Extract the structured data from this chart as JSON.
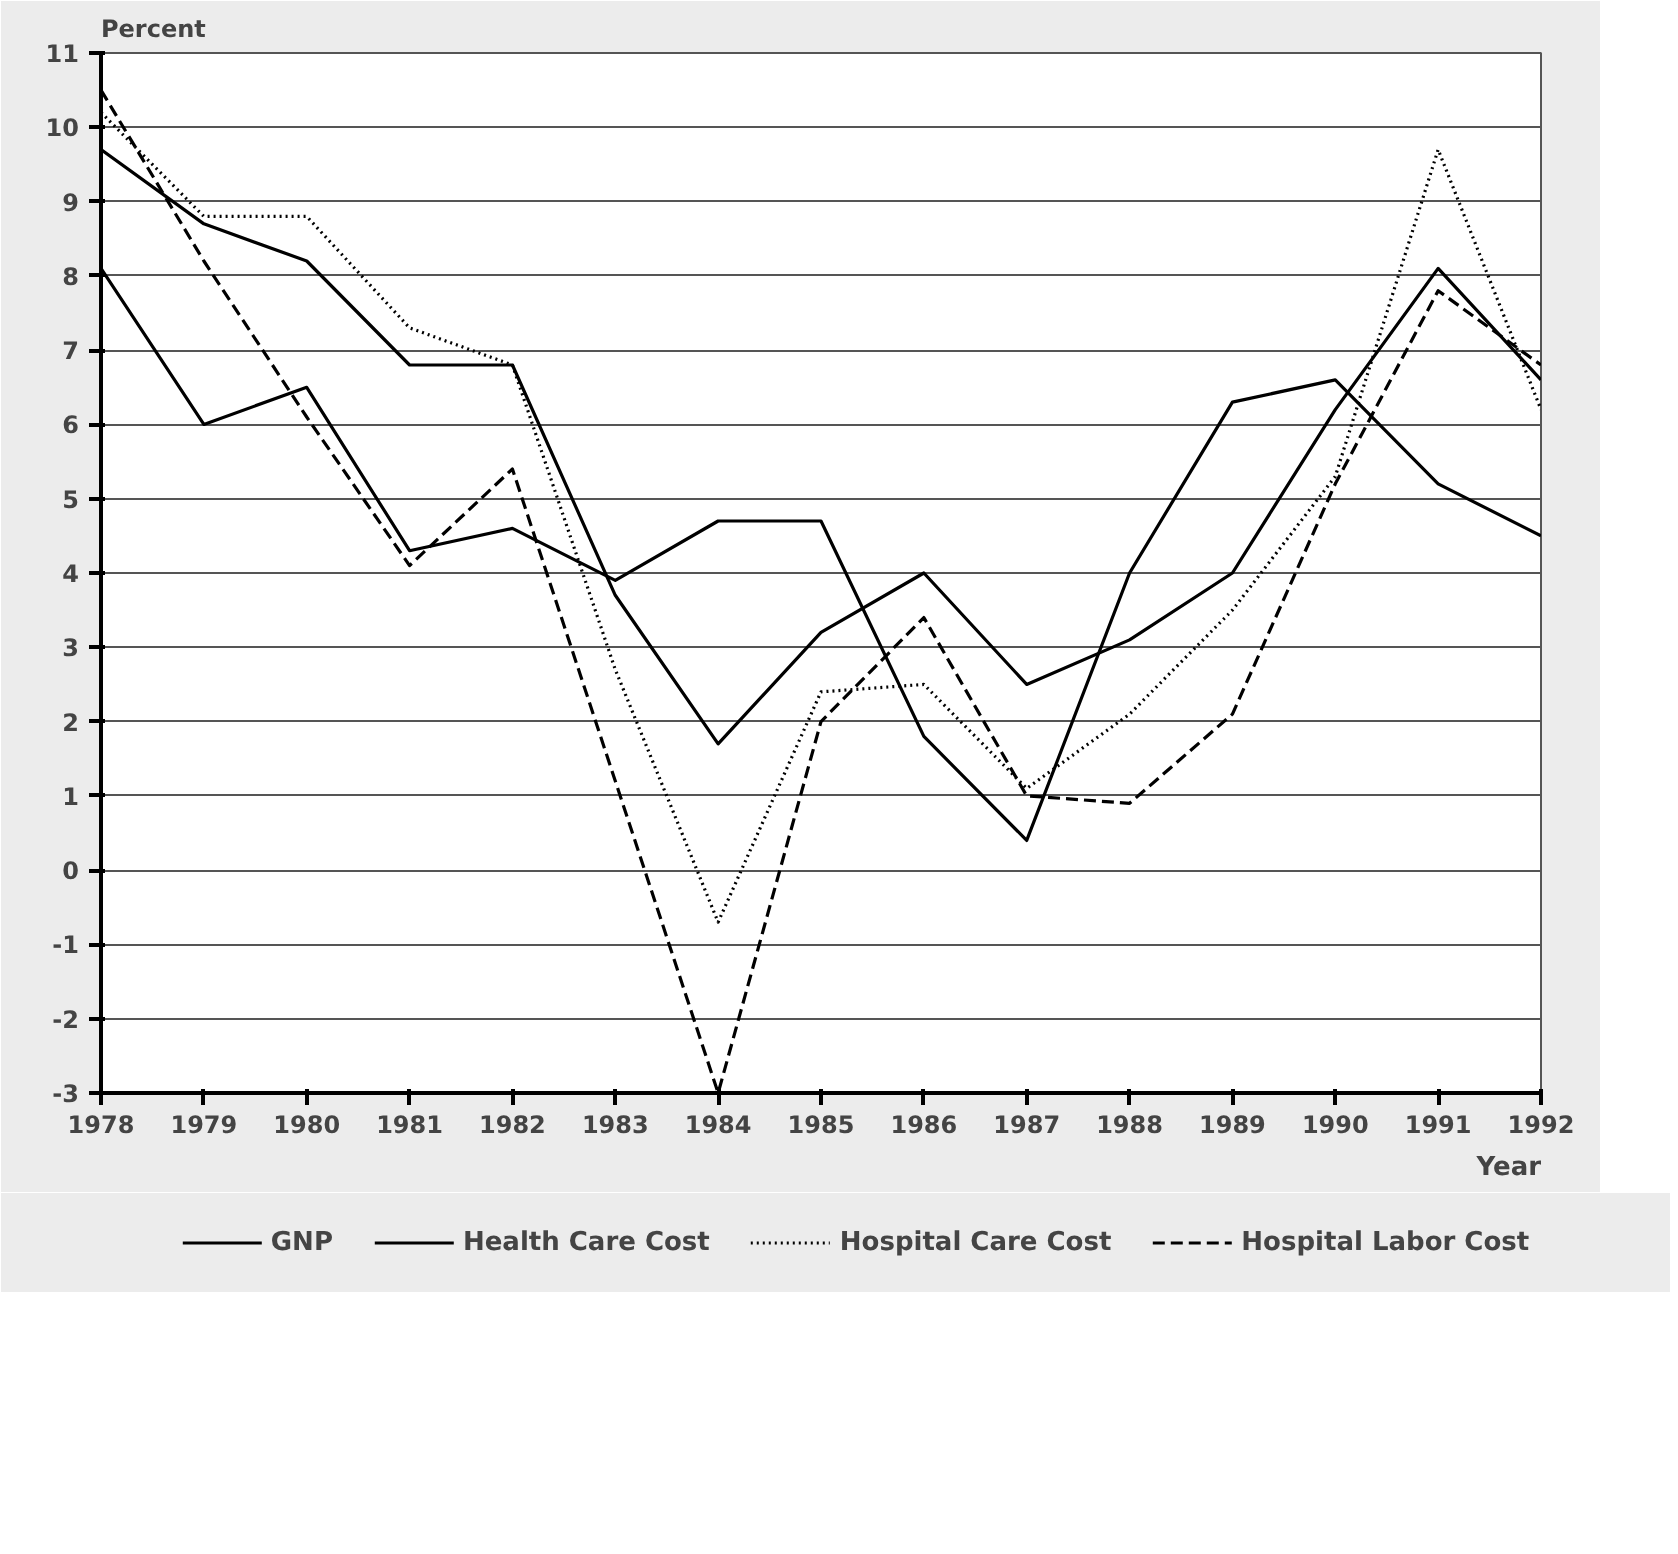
{
  "chart_data": {
    "type": "line",
    "xlabel": "Year",
    "ylabel": "Percent",
    "x": [
      1978,
      1979,
      1980,
      1981,
      1982,
      1983,
      1984,
      1985,
      1986,
      1987,
      1988,
      1989,
      1990,
      1991,
      1992
    ],
    "xlim": [
      1978,
      1992
    ],
    "xticks": [
      1978,
      1979,
      1980,
      1981,
      1982,
      1983,
      1984,
      1985,
      1986,
      1987,
      1988,
      1989,
      1990,
      1991,
      1992
    ],
    "ylim": [
      -3,
      11
    ],
    "yticks": [
      -3,
      -2,
      -1,
      0,
      1,
      2,
      3,
      4,
      5,
      6,
      7,
      8,
      9,
      10,
      11
    ],
    "grid": "y",
    "legend": "bottom",
    "marker": "none",
    "series": [
      {
        "name": "GNP",
        "color": "#000000",
        "line_style": "solid",
        "values": [
          8.1,
          6.0,
          6.5,
          4.3,
          4.6,
          3.9,
          4.7,
          4.7,
          1.8,
          0.4,
          4.0,
          6.3,
          6.6,
          5.2,
          4.5
        ]
      },
      {
        "name": "Health Care Cost",
        "color": "#000000",
        "line_style": "solid",
        "values": [
          9.7,
          8.7,
          8.2,
          6.8,
          6.8,
          3.7,
          1.7,
          3.2,
          4.0,
          2.5,
          3.1,
          4.0,
          6.2,
          8.1,
          6.6
        ]
      },
      {
        "name": "Hospital Care Cost",
        "color": "#000000",
        "line_style": "dotted",
        "values": [
          10.2,
          8.8,
          8.8,
          7.3,
          6.8,
          2.7,
          -0.7,
          2.4,
          2.5,
          1.1,
          2.1,
          3.5,
          5.3,
          9.7,
          6.2
        ]
      },
      {
        "name": "Hospital Labor Cost",
        "color": "#000000",
        "line_style": "dashed",
        "values": [
          10.5,
          8.2,
          6.1,
          4.1,
          5.4,
          1.2,
          -3.0,
          2.0,
          3.4,
          1.0,
          0.9,
          2.1,
          5.2,
          7.8,
          6.8
        ]
      }
    ]
  }
}
